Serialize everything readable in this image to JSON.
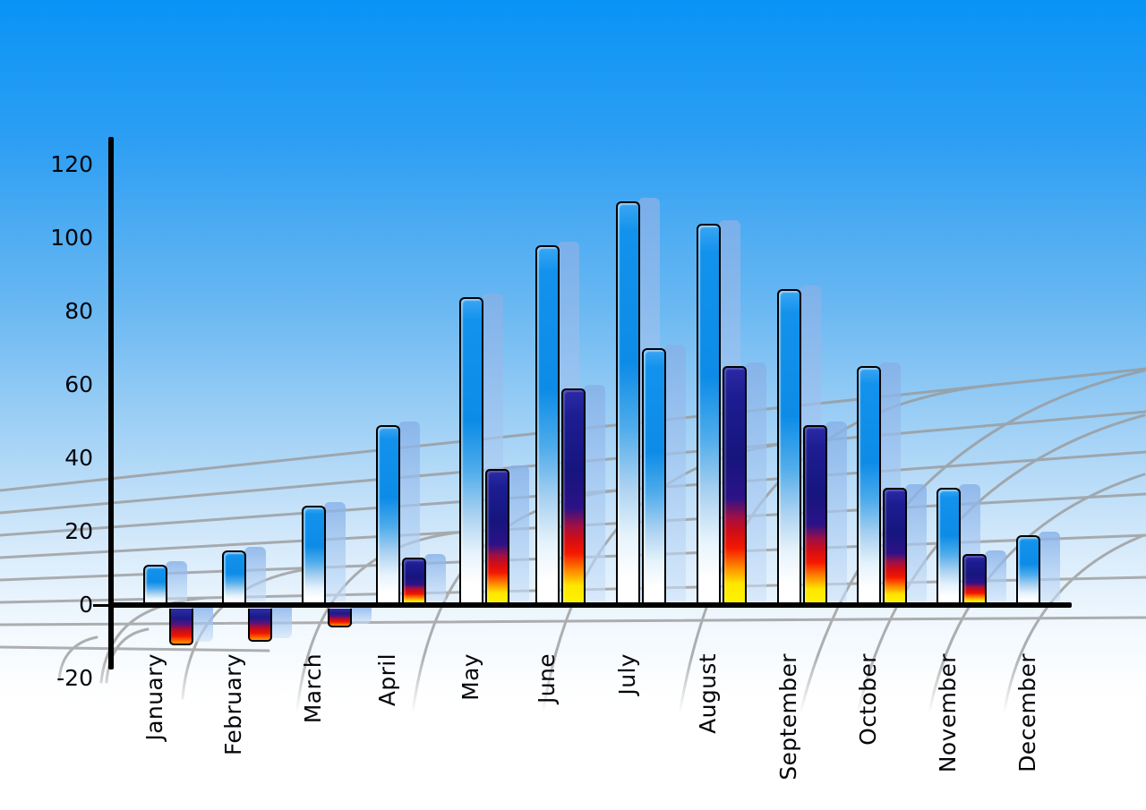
{
  "chart_data": {
    "type": "bar",
    "categories": [
      "January",
      "February",
      "March",
      "April",
      "May",
      "June",
      "July",
      "August",
      "September",
      "October",
      "November",
      "December"
    ],
    "series": [
      {
        "name": "primary-blue-bars",
        "style": "blue-gradient",
        "values": [
          11,
          15,
          27,
          49,
          84,
          98,
          110,
          104,
          86,
          65,
          32,
          19
        ]
      },
      {
        "name": "secondary-flame-bars",
        "style": "flame-gradient",
        "values": [
          -11,
          -10,
          -6,
          13,
          37,
          59,
          70,
          65,
          49,
          32,
          14,
          null
        ],
        "bar_styles": [
          "flame",
          "flame",
          "flame",
          "flame",
          "flame",
          "flame",
          "blue",
          "flame",
          "flame",
          "flame",
          "flame",
          null
        ]
      }
    ],
    "yticks": [
      120,
      100,
      80,
      60,
      40,
      20,
      0,
      -20
    ],
    "ylim": [
      -20,
      120
    ],
    "legend": "none",
    "grid": "curved perspective floor grid",
    "background": "blue sky gradient fading to white",
    "bars_have_3d_shadow_copies": true
  },
  "colors": {
    "sky_top": "#0894f6",
    "bar_blue": "#0d8ce7",
    "bar_shadow": "#a6c8f1",
    "flame_navy": "#16157e",
    "flame_red": "#e60d0d",
    "flame_yellow": "#fcf500",
    "grid_line": "#999999",
    "axis": "#000000",
    "label_text": "#05050a"
  }
}
